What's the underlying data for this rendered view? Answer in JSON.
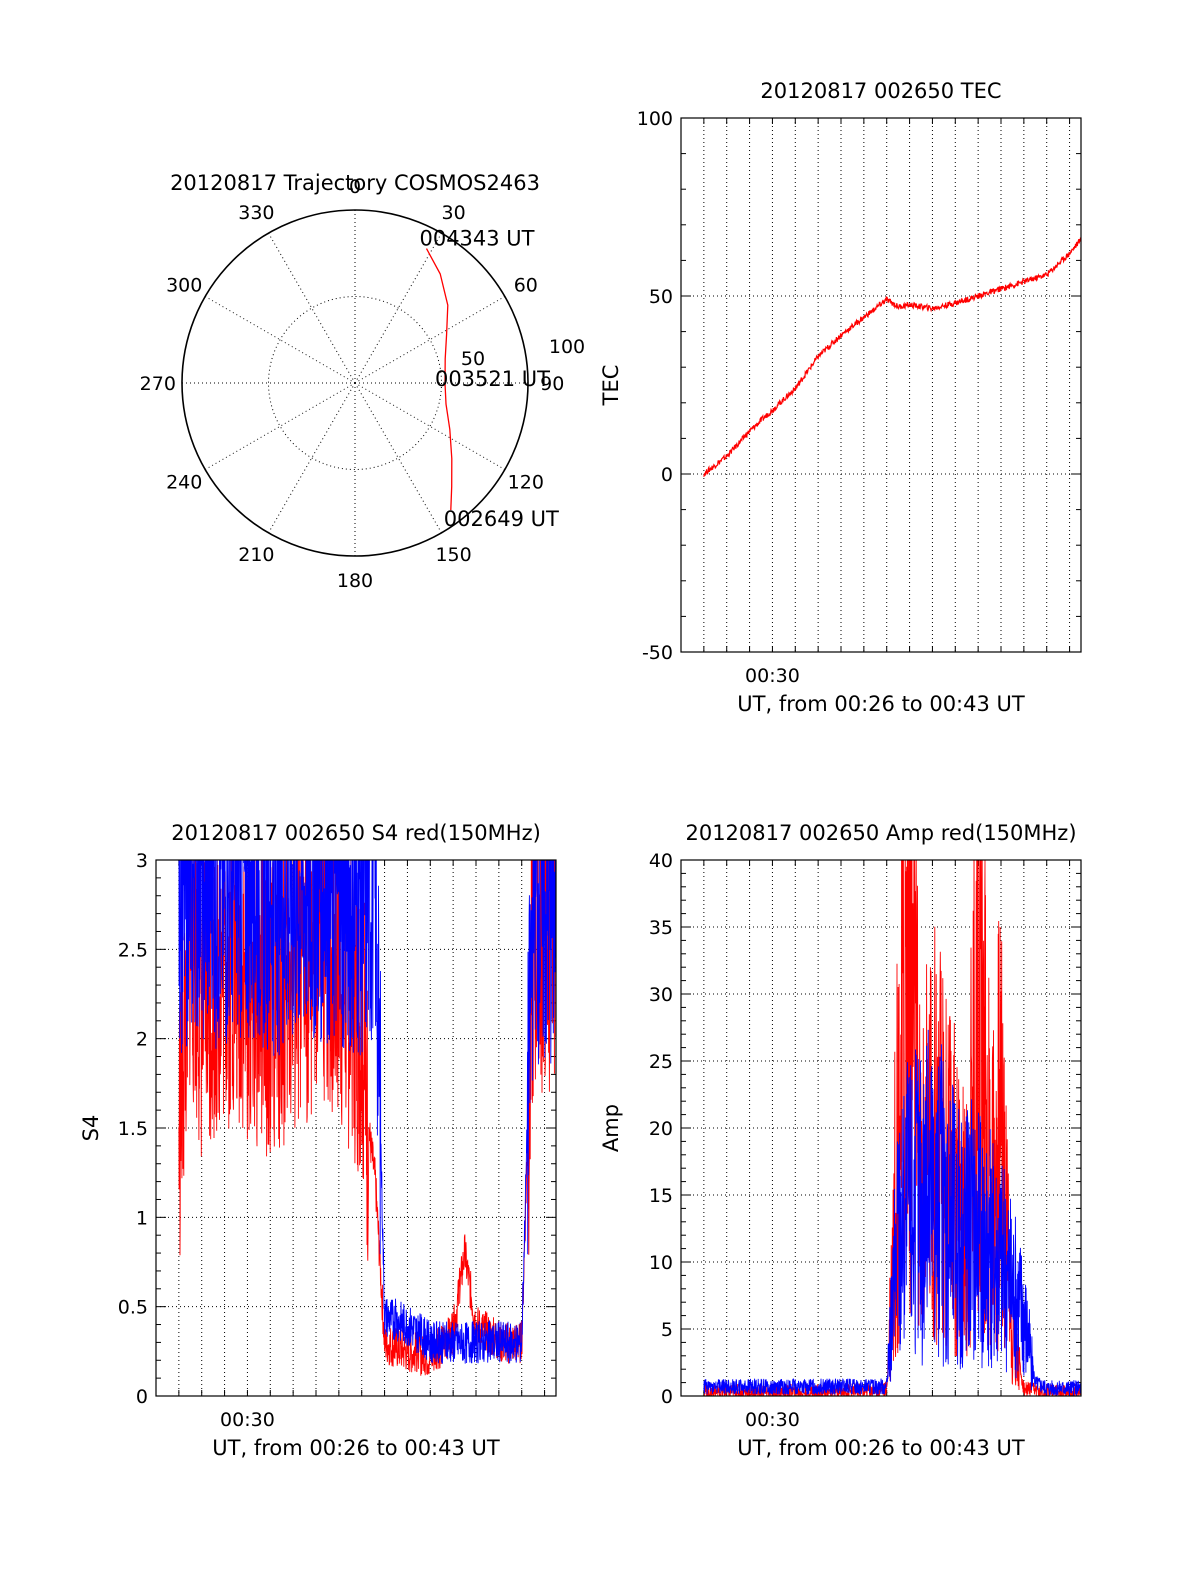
{
  "chart_data": [
    {
      "type": "polar",
      "title": "20120817 Trajectory COSMOS2463",
      "angle_labels": [
        "0",
        "30",
        "60",
        "90",
        "120",
        "150",
        "180",
        "210",
        "240",
        "270",
        "300",
        "330"
      ],
      "radius_labels": [
        "50",
        "100"
      ],
      "rlim": [
        0,
        100
      ],
      "grid": true,
      "series": [
        {
          "color": "#ff0000",
          "points": [
            {
              "azimuth": 28,
              "radius": 88
            },
            {
              "azimuth": 38,
              "radius": 80
            },
            {
              "azimuth": 50,
              "radius": 70
            },
            {
              "azimuth": 62,
              "radius": 60
            },
            {
              "azimuth": 75,
              "radius": 54
            },
            {
              "azimuth": 90,
              "radius": 52
            },
            {
              "azimuth": 103,
              "radius": 54
            },
            {
              "azimuth": 116,
              "radius": 61
            },
            {
              "azimuth": 128,
              "radius": 71
            },
            {
              "azimuth": 137,
              "radius": 82
            },
            {
              "azimuth": 143,
              "radius": 92
            }
          ]
        }
      ],
      "annotations": [
        {
          "text": "004343 UT",
          "azimuth": 28,
          "radius": 88
        },
        {
          "text": "003521 UT",
          "azimuth": 90,
          "radius": 52
        },
        {
          "text": "002649 UT",
          "azimuth": 143,
          "radius": 92
        }
      ]
    },
    {
      "type": "line",
      "title": "20120817 002650 TEC",
      "xlabel": "UT, from 00:26 to 00:43 UT",
      "ylabel": "TEC",
      "xlim": [
        26.0,
        43.5
      ],
      "ylim": [
        -50,
        100
      ],
      "yticks": [
        -50,
        0,
        50,
        100
      ],
      "xtick_labels": [
        {
          "x": 30,
          "label": "00:30"
        }
      ],
      "grid": true,
      "series": [
        {
          "color": "#ff0000",
          "x": [
            27.0,
            28.0,
            29.0,
            30.0,
            31.0,
            32.0,
            33.0,
            34.0,
            35.0,
            35.5,
            36.0,
            37.0,
            38.0,
            39.0,
            40.0,
            41.0,
            42.0,
            43.0,
            43.5
          ],
          "y": [
            0,
            5,
            12,
            18,
            24,
            33,
            39,
            44,
            49,
            47,
            47.5,
            46.5,
            48,
            50,
            52,
            54,
            56,
            62,
            66
          ]
        }
      ]
    },
    {
      "type": "line",
      "title": "20120817 002650 S4 red(150MHz)",
      "xlabel": "UT, from 00:26 to 00:43 UT",
      "ylabel": "S4",
      "xlim": [
        26.0,
        43.5
      ],
      "ylim": [
        0,
        3
      ],
      "yticks": [
        0,
        0.5,
        1,
        1.5,
        2,
        2.5,
        3
      ],
      "xtick_labels": [
        {
          "x": 30,
          "label": "00:30"
        }
      ],
      "grid": true,
      "series": [
        {
          "color": "#ff0000",
          "x": [
            27.0,
            27.5,
            28.0,
            29.0,
            30.0,
            31.0,
            32.0,
            33.0,
            34.0,
            35.0,
            35.3,
            35.6,
            36.0,
            37.0,
            38.0,
            39.0,
            39.5,
            40.0,
            41.0,
            42.0,
            42.5,
            43.0,
            43.5
          ],
          "y": [
            1.5,
            2.6,
            2.2,
            2.4,
            2.3,
            2.2,
            2.3,
            2.5,
            2.4,
            2.1,
            1.5,
            1.2,
            0.3,
            0.25,
            0.22,
            0.35,
            0.8,
            0.4,
            0.3,
            0.3,
            2.5,
            2.6,
            2.6
          ]
        },
        {
          "color": "#0000ff",
          "x": [
            27.0,
            28.0,
            29.0,
            30.0,
            31.0,
            32.0,
            33.0,
            34.0,
            35.0,
            35.6,
            36.0,
            37.0,
            38.0,
            39.0,
            40.0,
            41.0,
            42.0,
            42.5,
            43.0,
            43.5
          ],
          "y": [
            2.8,
            2.9,
            2.8,
            2.9,
            2.8,
            2.8,
            2.9,
            2.8,
            2.8,
            2.8,
            0.45,
            0.4,
            0.3,
            0.3,
            0.3,
            0.3,
            0.3,
            2.8,
            2.7,
            2.7
          ]
        }
      ]
    },
    {
      "type": "line",
      "title": "20120817 002650 Amp red(150MHz)",
      "xlabel": "UT, from 00:26 to 00:43 UT",
      "ylabel": "Amp",
      "xlim": [
        26.0,
        43.5
      ],
      "ylim": [
        0,
        40
      ],
      "yticks": [
        0,
        5,
        10,
        15,
        20,
        25,
        30,
        35,
        40
      ],
      "xtick_labels": [
        {
          "x": 30,
          "label": "00:30"
        }
      ],
      "grid": true,
      "series": [
        {
          "color": "#ff0000",
          "x": [
            27.0,
            30.0,
            33.0,
            35.0,
            35.5,
            36.0,
            36.5,
            37.0,
            37.5,
            38.0,
            38.5,
            39.0,
            39.5,
            40.0,
            40.5,
            41.0,
            42.0,
            43.5
          ],
          "y": [
            0.3,
            0.3,
            0.3,
            0.5,
            20,
            35,
            15,
            20,
            17,
            15,
            12,
            32,
            16,
            21,
            5,
            0.5,
            0.3,
            0.3
          ]
        },
        {
          "color": "#0000ff",
          "x": [
            27.0,
            30.0,
            33.0,
            35.0,
            35.5,
            36.0,
            37.0,
            38.0,
            39.0,
            40.0,
            41.0,
            41.5,
            42.0,
            43.5
          ],
          "y": [
            0.7,
            0.7,
            0.7,
            0.7,
            12,
            14,
            15,
            13,
            12,
            10,
            6,
            1,
            0.6,
            0.6
          ]
        }
      ]
    }
  ]
}
